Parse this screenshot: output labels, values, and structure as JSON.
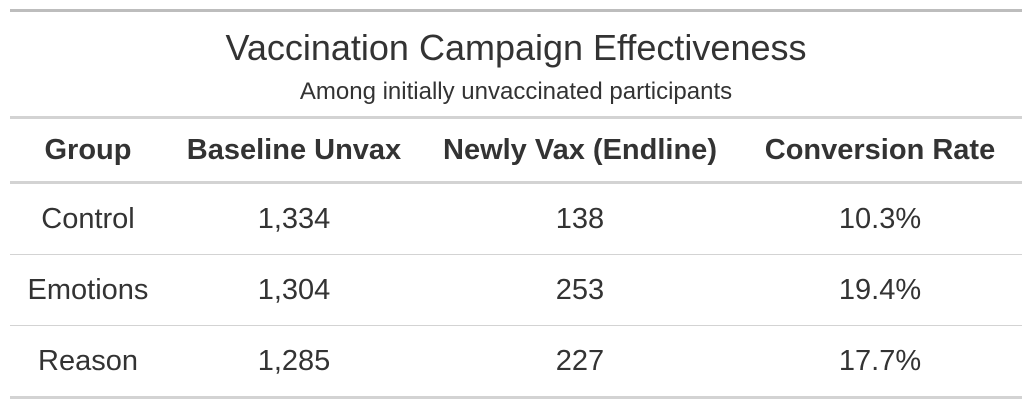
{
  "chart_data": {
    "type": "table",
    "title": "Vaccination Campaign Effectiveness",
    "subtitle": "Among initially unvaccinated participants",
    "columns": [
      "Group",
      "Baseline Unvax",
      "Newly Vax (Endline)",
      "Conversion Rate"
    ],
    "rows": [
      [
        "Control",
        "1,334",
        "138",
        "10.3%"
      ],
      [
        "Emotions",
        "1,304",
        "253",
        "19.4%"
      ],
      [
        "Reason",
        "1,285",
        "227",
        "17.7%"
      ]
    ]
  }
}
